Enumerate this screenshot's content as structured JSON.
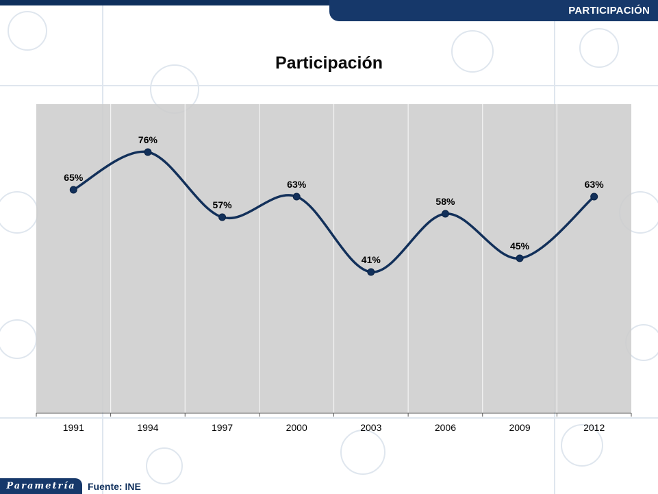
{
  "header": {
    "section_label": "PARTICIPACIÓN"
  },
  "footer": {
    "logo_text": "Parametría",
    "source": "Fuente: INE"
  },
  "colors": {
    "brand_navy": "#16386a",
    "line": "#12305a",
    "plot_bg": "#cdcdcd"
  },
  "chart_data": {
    "type": "line",
    "title": "Participación",
    "xlabel": "",
    "ylabel": "",
    "categories": [
      "1991",
      "1994",
      "1997",
      "2000",
      "2003",
      "2006",
      "2009",
      "2012"
    ],
    "series": [
      {
        "values": [
          65,
          76,
          57,
          63,
          41,
          58,
          45,
          63
        ],
        "labels": [
          "65%",
          "76%",
          "57%",
          "63%",
          "41%",
          "58%",
          "45%",
          "63%"
        ]
      }
    ],
    "ylim": [
      0,
      90
    ],
    "smooth": true,
    "grid": "vertical",
    "legend": "none"
  }
}
